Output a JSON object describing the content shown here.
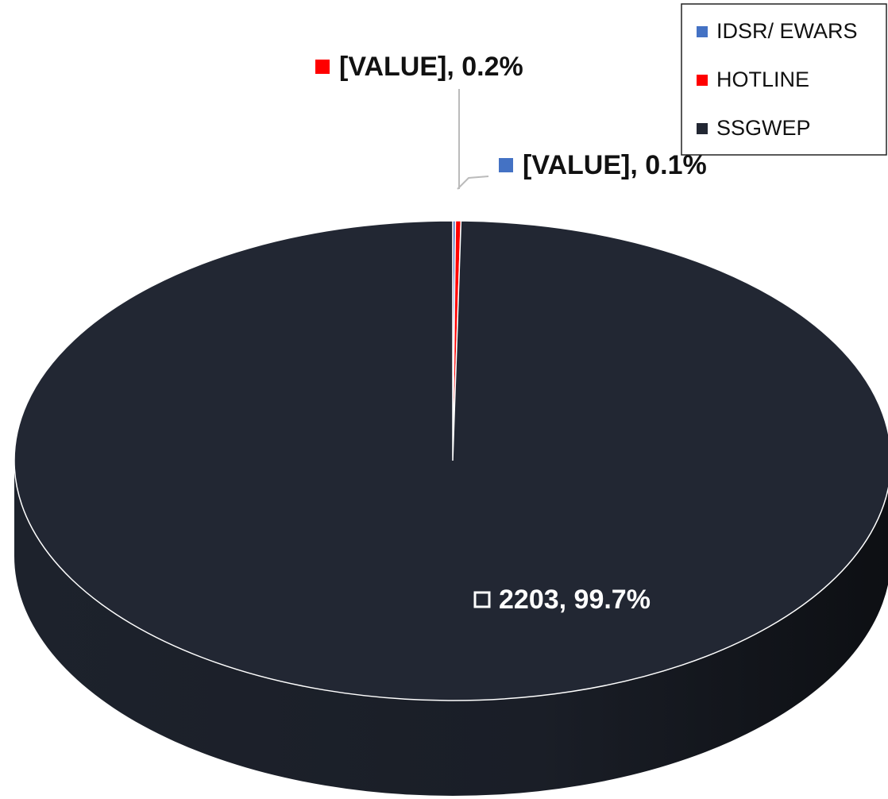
{
  "chart_data": {
    "type": "pie",
    "categories": [
      "IDSR/ EWARS",
      "HOTLINE",
      "SSGWEP"
    ],
    "values": [
      0.1,
      0.2,
      99.7
    ],
    "value_labels": [
      "[VALUE], 0.1%",
      "[VALUE], 0.2%",
      "2203, 99.7%"
    ],
    "colors": [
      "#4472c4",
      "#ff0000",
      "#222733"
    ],
    "legend": "top-right"
  }
}
